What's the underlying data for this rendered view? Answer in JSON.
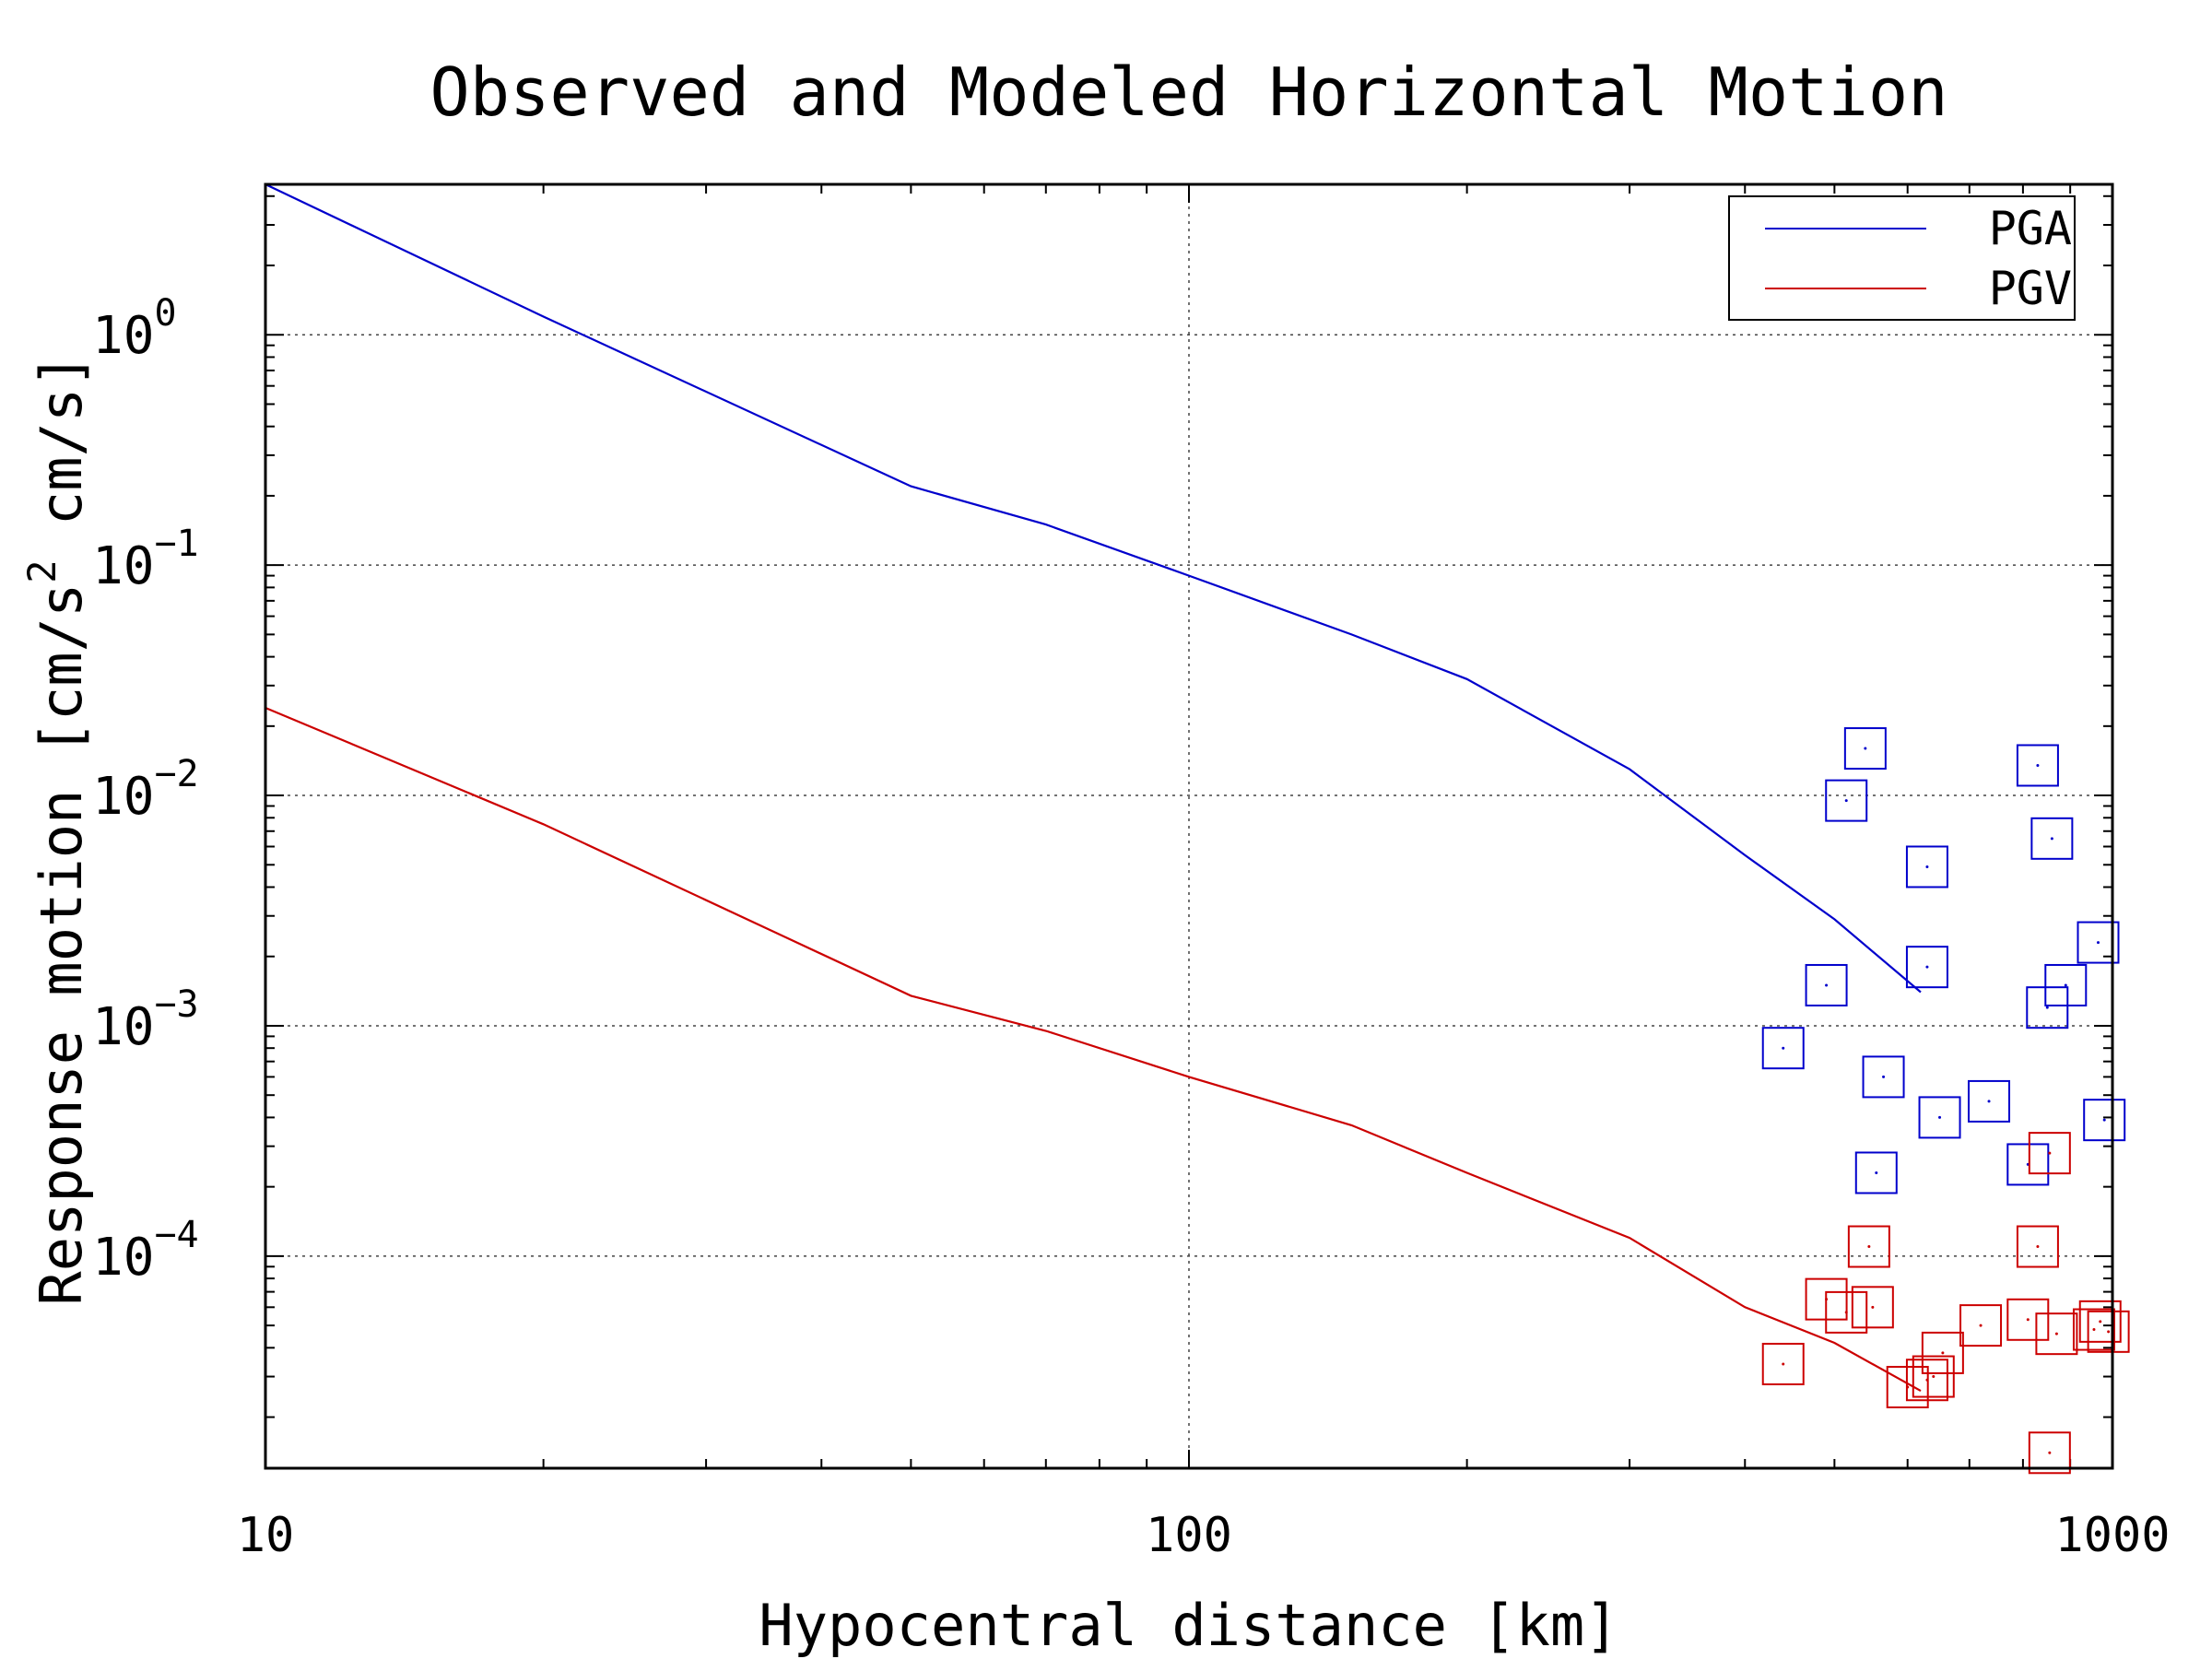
{
  "chart_data": {
    "type": "line",
    "title": "Observed and Modeled Horizontal Motion",
    "xlabel": "Hypocentral distance [km]",
    "ylabel": "Response motion [cm/s",
    "ylabel_sup": "2",
    "ylabel_tail": " cm/s]",
    "x_scale": "log",
    "y_scale": "log",
    "xlim": [
      10,
      1000
    ],
    "ylim": [
      1.2e-05,
      4.5
    ],
    "x_ticks": [
      {
        "value": 10,
        "label": "10"
      },
      {
        "value": 100,
        "label": "100"
      },
      {
        "value": 1000,
        "label": "1000"
      }
    ],
    "y_ticks": [
      {
        "value": 1,
        "base": "10",
        "exp": "0"
      },
      {
        "value": 0.1,
        "base": "10",
        "exp": "−1"
      },
      {
        "value": 0.01,
        "base": "10",
        "exp": "−2"
      },
      {
        "value": 0.001,
        "base": "10",
        "exp": "−3"
      },
      {
        "value": 0.0001,
        "base": "10",
        "exp": "−4"
      }
    ],
    "grid": true,
    "legend_position": "top-right",
    "series": [
      {
        "name": "PGA",
        "color": "#0000cc",
        "points": [
          [
            10,
            4.5
          ],
          [
            20,
            1.2
          ],
          [
            50,
            0.22
          ],
          [
            70,
            0.15
          ],
          [
            100,
            0.09
          ],
          [
            150,
            0.05
          ],
          [
            200,
            0.032
          ],
          [
            300,
            0.013
          ],
          [
            400,
            0.0055
          ],
          [
            500,
            0.0029
          ],
          [
            620,
            0.0014
          ]
        ]
      },
      {
        "name": "PGV",
        "color": "#cc0000",
        "points": [
          [
            10,
            0.024
          ],
          [
            20,
            0.0075
          ],
          [
            50,
            0.00135
          ],
          [
            70,
            0.00095
          ],
          [
            100,
            0.0006
          ],
          [
            150,
            0.00037
          ],
          [
            200,
            0.00023
          ],
          [
            300,
            0.00012
          ],
          [
            400,
            6e-05
          ],
          [
            500,
            4.2e-05
          ],
          [
            620,
            2.6e-05
          ]
        ]
      }
    ],
    "observations": [
      {
        "series": "PGA",
        "color": "#0000cc",
        "points": [
          [
            540,
            0.016
          ],
          [
            515,
            0.0095
          ],
          [
            830,
            0.0135
          ],
          [
            630,
            0.0049
          ],
          [
            860,
            0.0065
          ],
          [
            965,
            0.0023
          ],
          [
            630,
            0.0018
          ],
          [
            490,
            0.0015
          ],
          [
            890,
            0.0015
          ],
          [
            850,
            0.0012
          ],
          [
            440,
            0.0008
          ],
          [
            565,
            0.0006
          ],
          [
            735,
            0.00047
          ],
          [
            650,
            0.0004
          ],
          [
            980,
            0.00039
          ],
          [
            810,
            0.00025
          ],
          [
            555,
            0.00023
          ]
        ]
      },
      {
        "series": "PGV",
        "color": "#cc0000",
        "points": [
          [
            855,
            0.00028
          ],
          [
            545,
            0.00011
          ],
          [
            830,
            0.00011
          ],
          [
            490,
            6.5e-05
          ],
          [
            550,
            6e-05
          ],
          [
            515,
            5.7e-05
          ],
          [
            810,
            5.3e-05
          ],
          [
            720,
            5e-05
          ],
          [
            970,
            5.2e-05
          ],
          [
            870,
            4.6e-05
          ],
          [
            955,
            4.8e-05
          ],
          [
            990,
            4.7e-05
          ],
          [
            440,
            3.4e-05
          ],
          [
            655,
            3.8e-05
          ],
          [
            640,
            3e-05
          ],
          [
            600,
            2.7e-05
          ],
          [
            630,
            2.9e-05
          ],
          [
            855,
            1.4e-05
          ]
        ]
      }
    ]
  }
}
